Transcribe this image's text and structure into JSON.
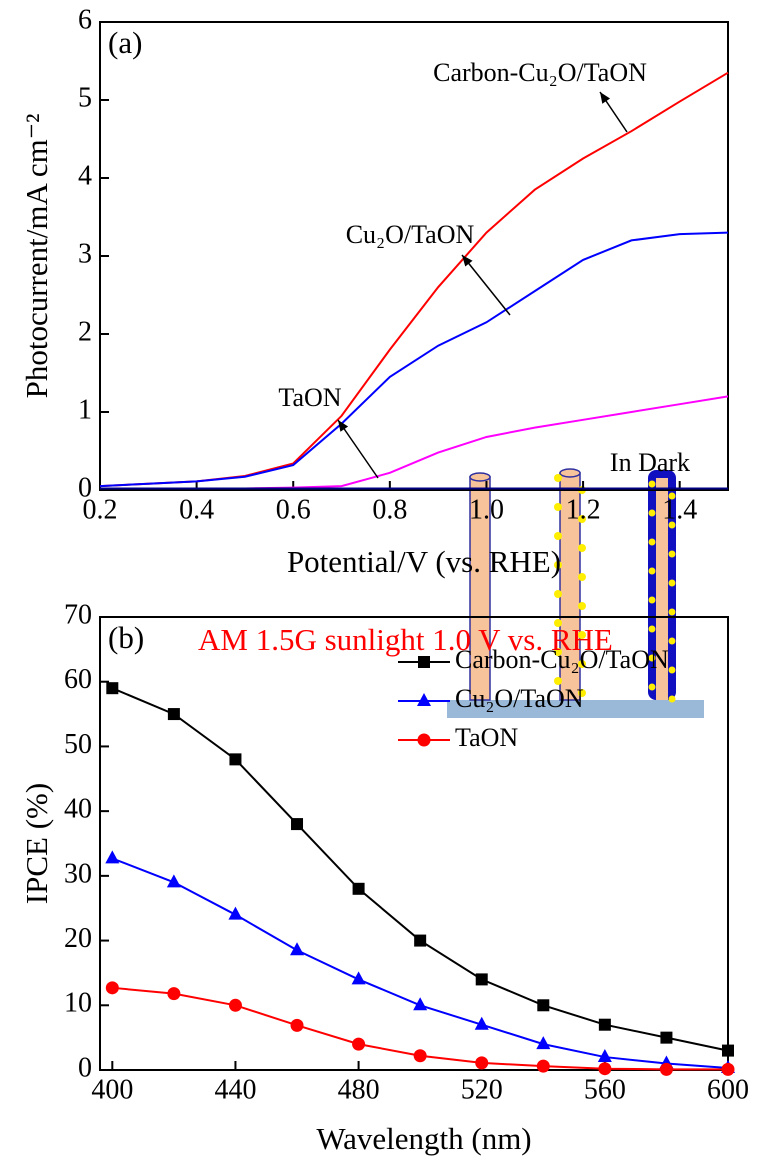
{
  "chart_data": [
    {
      "type": "line",
      "panel_label": "(a)",
      "x_label": "Potential/V (vs. RHE)",
      "y_label": "Photocurrent/mA cm⁻²",
      "x": [
        0.2,
        0.3,
        0.4,
        0.5,
        0.6,
        0.7,
        0.8,
        0.9,
        1.0,
        1.1,
        1.2,
        1.3,
        1.4,
        1.5
      ],
      "series": [
        {
          "name": "Carbon-Cu₂O/TaON",
          "color": "#ff0000",
          "values": [
            0.05,
            0.08,
            0.11,
            0.18,
            0.34,
            0.95,
            1.8,
            2.6,
            3.3,
            3.85,
            4.25,
            4.6,
            4.98,
            5.35
          ]
        },
        {
          "name": "Cu₂O/TaON",
          "color": "#0000ff",
          "values": [
            0.05,
            0.08,
            0.11,
            0.17,
            0.32,
            0.85,
            1.45,
            1.85,
            2.15,
            2.55,
            2.95,
            3.2,
            3.28,
            3.3
          ]
        },
        {
          "name": "TaON",
          "color": "#ff00ff",
          "values": [
            0.02,
            0.02,
            0.02,
            0.02,
            0.03,
            0.05,
            0.22,
            0.48,
            0.68,
            0.8,
            0.9,
            1.0,
            1.1,
            1.2
          ]
        },
        {
          "name": "In Dark",
          "color": "#000080",
          "values": [
            0.02,
            0.02,
            0.02,
            0.02,
            0.02,
            0.02,
            0.02,
            0.02,
            0.02,
            0.02,
            0.02,
            0.02,
            0.02,
            0.02
          ]
        }
      ],
      "xlim": [
        0.2,
        1.5
      ],
      "xticks": [
        0.2,
        0.4,
        0.6,
        0.8,
        {
          "value": 1,
          "label": "1.0"
        },
        1.2,
        1.4
      ],
      "ylim": [
        0,
        6
      ],
      "yticks": [
        0,
        1,
        2,
        3,
        4,
        5,
        6
      ]
    },
    {
      "type": "line",
      "panel_label": "(b)",
      "note": "AM 1.5G sunlight  1.0 V vs. RHE",
      "note_color": "#ff0000",
      "x_label": "Wavelength (nm)",
      "y_label": "IPCE (%)",
      "x": [
        400,
        420,
        440,
        460,
        480,
        500,
        520,
        540,
        560,
        580,
        600
      ],
      "series": [
        {
          "name": "Carbon-Cu₂O/TaON",
          "color": "#000000",
          "marker": "square",
          "values": [
            59,
            55,
            48,
            38,
            28,
            20,
            14,
            10,
            7,
            5,
            3
          ]
        },
        {
          "name": "Cu₂O/TaON",
          "color": "#0000ff",
          "marker": "triangle",
          "values": [
            32.7,
            29,
            24,
            18.5,
            14,
            10,
            7,
            4,
            2,
            1,
            0.3
          ]
        },
        {
          "name": "TaON",
          "color": "#ff0000",
          "marker": "circle",
          "values": [
            12.7,
            11.8,
            10,
            6.9,
            4,
            2.2,
            1.1,
            0.6,
            0.2,
            0.1,
            0.1
          ]
        }
      ],
      "legend": "upper right",
      "xlim": [
        396,
        600
      ],
      "xticks": [
        400,
        440,
        480,
        520,
        560,
        600
      ],
      "ylim": [
        0,
        70
      ],
      "yticks": [
        0,
        10,
        20,
        30,
        40,
        50,
        60,
        70
      ]
    }
  ]
}
